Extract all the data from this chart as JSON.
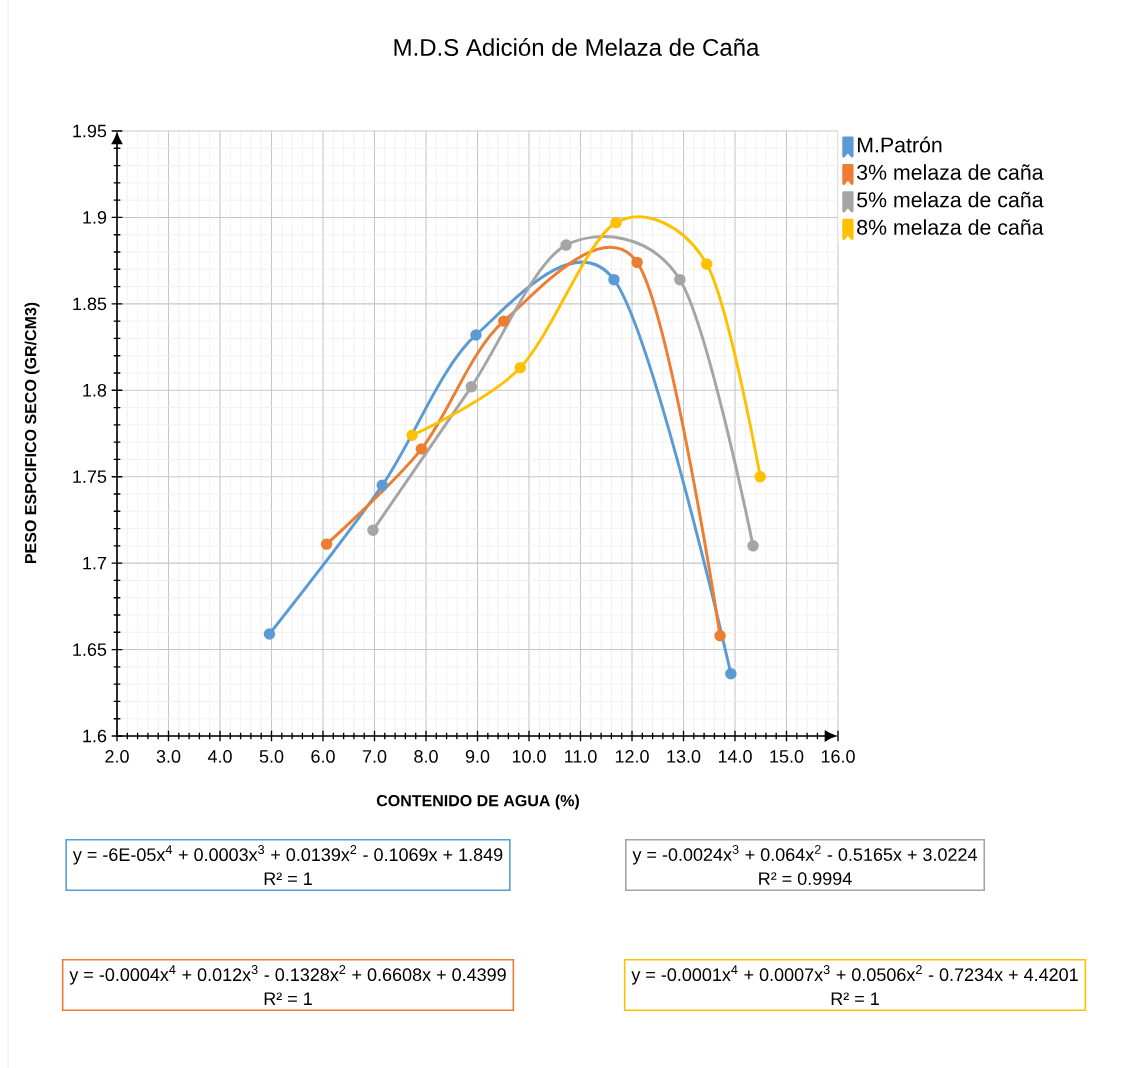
{
  "chart_data": {
    "type": "line",
    "title": "M.D.S Adición de Melaza de Caña",
    "xlabel": "CONTENIDO DE AGUA (%)",
    "ylabel": "PESO ESPCIFICO SECO (GR/CM3)",
    "series": [
      {
        "name": "M.Patrón",
        "color": "#5b9bd5",
        "x": [
          4.96,
          7.15,
          8.97,
          11.65,
          13.92
        ],
        "values": [
          1.659,
          1.745,
          1.832,
          1.864,
          1.636
        ]
      },
      {
        "name": "3% melaza de caña",
        "color": "#ed7d31",
        "x": [
          6.07,
          7.91,
          9.51,
          12.1,
          13.71
        ],
        "values": [
          1.711,
          1.766,
          1.84,
          1.874,
          1.658
        ]
      },
      {
        "name": "5% melaza de caña",
        "color": "#a5a5a5",
        "x": [
          6.97,
          8.88,
          10.72,
          12.93,
          14.35
        ],
        "values": [
          1.719,
          1.802,
          1.884,
          1.864,
          1.71
        ]
      },
      {
        "name": "8% melaza de caña",
        "color": "#ffc000",
        "x": [
          7.73,
          9.83,
          11.69,
          13.45,
          14.49
        ],
        "values": [
          1.774,
          1.813,
          1.897,
          1.873,
          1.75
        ]
      }
    ],
    "xlim": [
      2,
      16
    ],
    "ylim": [
      1.6,
      1.95
    ],
    "xticks": [
      {
        "value": 2,
        "label": "2.0"
      },
      {
        "value": 3,
        "label": "3.0"
      },
      {
        "value": 4,
        "label": "4.0"
      },
      {
        "value": 5,
        "label": "5.0"
      },
      {
        "value": 6,
        "label": "6.0"
      },
      {
        "value": 7,
        "label": "7.0"
      },
      {
        "value": 8,
        "label": "8.0"
      },
      {
        "value": 9,
        "label": "9.0"
      },
      {
        "value": 10,
        "label": "10.0"
      },
      {
        "value": 11,
        "label": "11.0"
      },
      {
        "value": 12,
        "label": "12.0"
      },
      {
        "value": 13,
        "label": "13.0"
      },
      {
        "value": 14,
        "label": "14.0"
      },
      {
        "value": 15,
        "label": "15.0"
      },
      {
        "value": 16,
        "label": "16.0"
      }
    ],
    "yticks": [
      1.6,
      1.65,
      1.7,
      1.75,
      1.8,
      1.85,
      1.9,
      1.95
    ],
    "grid": true,
    "legend": "top right",
    "marker": "circle",
    "line_style": "solid",
    "annotations": [
      "y = -6E-05x$^{4}$ + 0.0003x$^{3}$ + 0.0139x$^{2}$ - 0.1069x + 1.849",
      "R² = 1",
      "y = -0.0004x$^{4}$ + 0.012x$^{3}$ - 0.1328x$^{2}$ + 0.6608x + 0.4399",
      "R² = 1",
      "y = -0.0024x$^{3}$ + 0.064x$^{2}$ - 0.5165x + 3.0224",
      "R² = 0.9994",
      "y = -0.0001x$^{4}$ + 0.0007x$^{3}$ + 0.0506x$^{2}$ - 0.7234x + 4.4201",
      "R² = 1"
    ]
  }
}
